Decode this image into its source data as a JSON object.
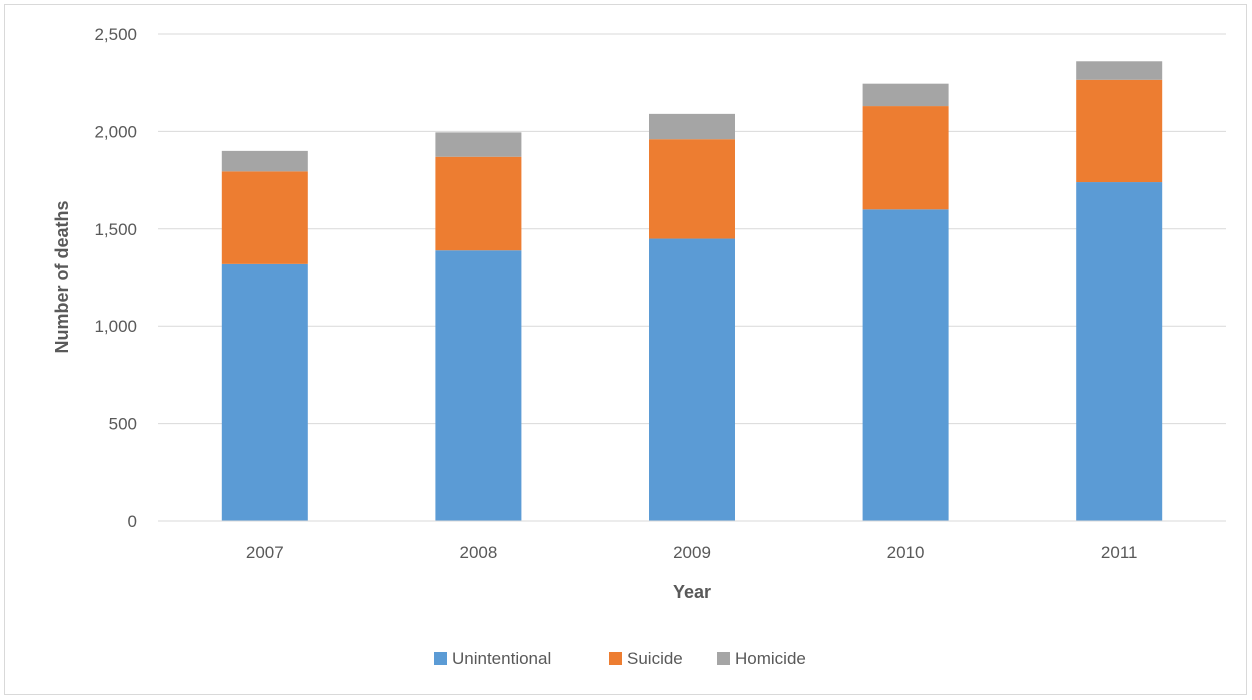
{
  "chart_data": {
    "type": "bar",
    "stacked": true,
    "categories": [
      "2007",
      "2008",
      "2009",
      "2010",
      "2011"
    ],
    "series": [
      {
        "name": "Unintentional",
        "values": [
          1320,
          1390,
          1450,
          1600,
          1740
        ],
        "color": "#5b9bd5"
      },
      {
        "name": "Suicide",
        "values": [
          475,
          480,
          510,
          530,
          525
        ],
        "color": "#ed7d31"
      },
      {
        "name": "Homicide",
        "values": [
          105,
          125,
          130,
          115,
          95
        ],
        "color": "#a5a5a5"
      }
    ],
    "xlabel": "Year",
    "ylabel": "Number of deaths",
    "ylim": [
      0,
      2500
    ],
    "yticks": [
      0,
      500,
      1000,
      1500,
      2000,
      2500
    ],
    "ytick_labels": [
      "0",
      "500",
      "1,000",
      "1,500",
      "2,000",
      "2,500"
    ],
    "grid": true,
    "legend_position": "bottom"
  }
}
